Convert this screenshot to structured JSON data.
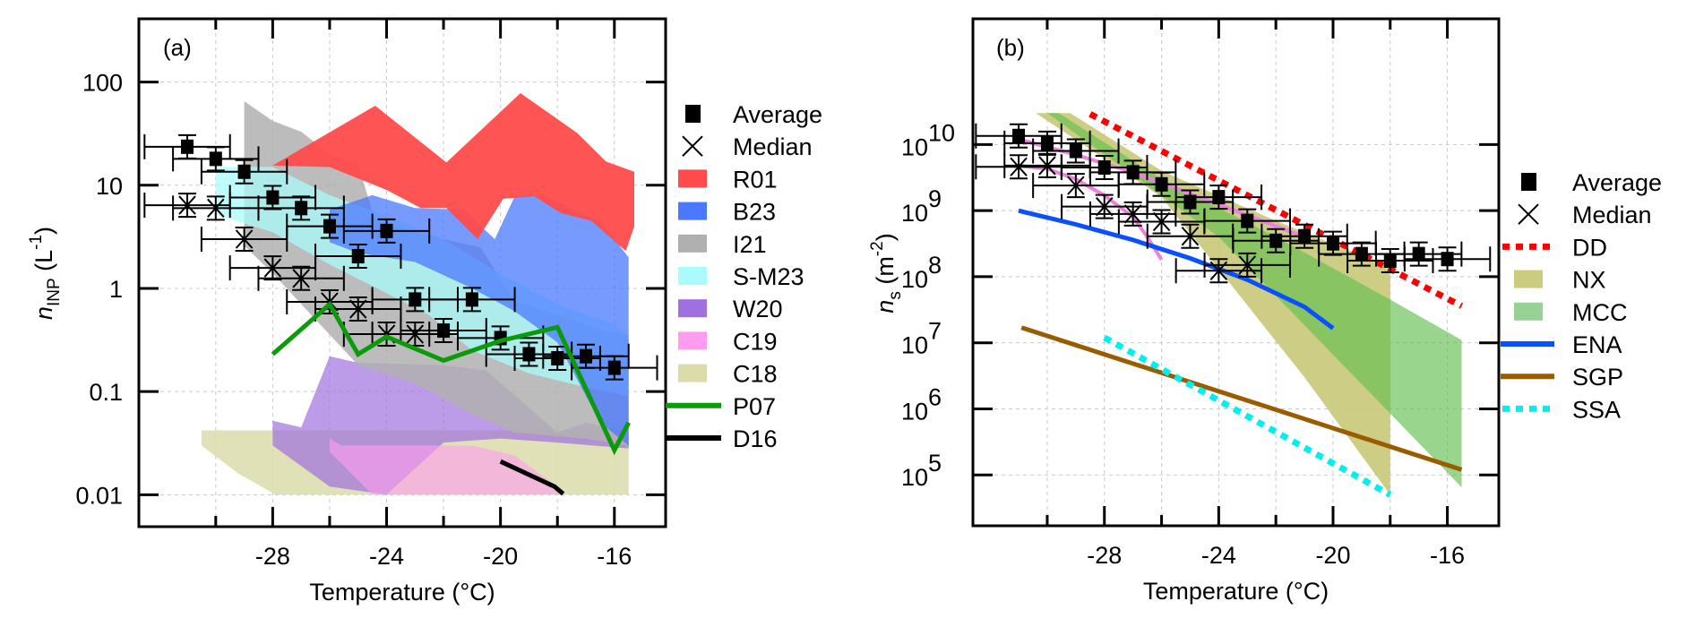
{
  "chart_data": [
    {
      "type": "scatter",
      "panel_label": "(a)",
      "xlabel": "Temperature (°C)",
      "ylabel": "n_INP (L^-1)",
      "ylabel_parts": {
        "main": "n",
        "sub": "INP",
        "unit_open": " (L",
        "unit_sup": "-1",
        "unit_close": ")"
      },
      "xscale": "linear",
      "yscale": "log",
      "xlim": [
        -32.7,
        -14.2
      ],
      "ylim": [
        0.0049,
        410
      ],
      "xticks_major": [
        -28,
        -24,
        -20,
        -16
      ],
      "xtick_labels": [
        "-28",
        "-24",
        "-20",
        "-16"
      ],
      "xticks_minor": [
        -30,
        -26,
        -22,
        -18
      ],
      "yticks": [
        0.01,
        0.1,
        1,
        10,
        100
      ],
      "ytick_labels": [
        "0.01",
        "0.1",
        "1",
        "10",
        "100"
      ],
      "grid": true,
      "legend_position": "outside-right",
      "legend": [
        {
          "label": "Average",
          "kind": "square",
          "color": "#000000"
        },
        {
          "label": "Median",
          "kind": "cross",
          "color": "#000000"
        },
        {
          "label": "R01",
          "kind": "patch",
          "color": "#ff4b4b"
        },
        {
          "label": "B23",
          "kind": "patch",
          "color": "#4a78ff"
        },
        {
          "label": "I21",
          "kind": "patch",
          "color": "#b0b0b0"
        },
        {
          "label": "S-M23",
          "kind": "patch",
          "color": "#aafcfc"
        },
        {
          "label": "W20",
          "kind": "patch",
          "color": "#a070e0"
        },
        {
          "label": "C19",
          "kind": "patch",
          "color": "#ff9cf0"
        },
        {
          "label": "C18",
          "kind": "patch",
          "color": "#dcdcaa"
        },
        {
          "label": "P07",
          "kind": "line",
          "color": "#0a9a0a"
        },
        {
          "label": "D16",
          "kind": "line",
          "color": "#000000"
        }
      ],
      "areas": [
        {
          "name": "C18",
          "color": "#dcdcaa",
          "opacity": 0.85,
          "points": [
            [
              -30.5,
              0.042
            ],
            [
              -15.5,
              0.042
            ],
            [
              -15.5,
              0.01
            ],
            [
              -27.9,
              0.01
            ],
            [
              -29.2,
              0.016
            ],
            [
              -30.5,
              0.03
            ]
          ]
        },
        {
          "name": "W20",
          "color": "#a070e0",
          "opacity": 0.7,
          "points": [
            [
              -28,
              0.052
            ],
            [
              -27,
              0.045
            ],
            [
              -26,
              0.22
            ],
            [
              -25,
              0.19
            ],
            [
              -22,
              0.18
            ],
            [
              -20.5,
              0.16
            ],
            [
              -19,
              0.07
            ],
            [
              -18,
              0.04
            ],
            [
              -17,
              0.05
            ],
            [
              -15.5,
              0.04
            ],
            [
              -15.5,
              0.028
            ],
            [
              -18,
              0.032
            ],
            [
              -20,
              0.035
            ],
            [
              -22,
              0.032
            ],
            [
              -24,
              0.01
            ],
            [
              -26,
              0.012
            ],
            [
              -28,
              0.03
            ]
          ]
        },
        {
          "name": "C19",
          "color": "#ff9cf0",
          "opacity": 0.6,
          "points": [
            [
              -26,
              0.035
            ],
            [
              -25.6,
              0.03
            ],
            [
              -21,
              0.03
            ],
            [
              -19.5,
              0.024
            ],
            [
              -18,
              0.012
            ],
            [
              -17.8,
              0.01
            ],
            [
              -24.5,
              0.01
            ],
            [
              -26,
              0.026
            ]
          ]
        },
        {
          "name": "I21",
          "color": "#b0b0b0",
          "opacity": 0.85,
          "points": [
            [
              -29,
              65
            ],
            [
              -28,
              42
            ],
            [
              -27,
              33
            ],
            [
              -26,
              20
            ],
            [
              -25,
              16
            ],
            [
              -24.4,
              4.5
            ],
            [
              -22,
              3.0
            ],
            [
              -20.7,
              2.5
            ],
            [
              -19.5,
              0.75
            ],
            [
              -18,
              0.55
            ],
            [
              -16.5,
              0.4
            ],
            [
              -15.5,
              0.35
            ],
            [
              -15.5,
              0.03
            ],
            [
              -17,
              0.035
            ],
            [
              -19.5,
              0.04
            ],
            [
              -21,
              0.06
            ],
            [
              -23,
              0.12
            ],
            [
              -25,
              0.18
            ],
            [
              -26.5,
              0.5
            ],
            [
              -28,
              1.4
            ],
            [
              -29,
              2.6
            ]
          ]
        },
        {
          "name": "S-M23",
          "color": "#aafcfc",
          "opacity": 0.75,
          "points": [
            [
              -30,
              15
            ],
            [
              -28,
              15
            ],
            [
              -26,
              8
            ],
            [
              -24,
              5
            ],
            [
              -22,
              3
            ],
            [
              -20,
              1.4
            ],
            [
              -18,
              0.7
            ],
            [
              -16,
              0.45
            ],
            [
              -15.5,
              0.35
            ],
            [
              -15.5,
              0.09
            ],
            [
              -17,
              0.11
            ],
            [
              -19,
              0.15
            ],
            [
              -21,
              0.25
            ],
            [
              -22.5,
              0.55
            ],
            [
              -24,
              0.9
            ],
            [
              -26,
              1.7
            ],
            [
              -28,
              3.5
            ],
            [
              -30,
              5.2
            ]
          ]
        },
        {
          "name": "B23",
          "color": "#4a78ff",
          "opacity": 0.75,
          "points": [
            [
              -26,
              5.8
            ],
            [
              -24.5,
              8
            ],
            [
              -23,
              6
            ],
            [
              -21.3,
              5.8
            ],
            [
              -20.2,
              3
            ],
            [
              -19.5,
              7.8
            ],
            [
              -18.5,
              8
            ],
            [
              -17.3,
              5.5
            ],
            [
              -16.5,
              4.5
            ],
            [
              -15.5,
              2
            ],
            [
              -15.5,
              0.03
            ],
            [
              -16.5,
              0.05
            ],
            [
              -18,
              0.3
            ],
            [
              -19.5,
              0.6
            ],
            [
              -21,
              1
            ],
            [
              -23,
              1.8
            ],
            [
              -25,
              2.2
            ],
            [
              -26,
              2.8
            ]
          ]
        },
        {
          "name": "R01",
          "color": "#ff4b4b",
          "opacity": 0.95,
          "points": [
            [
              -28,
              15.5
            ],
            [
              -24.4,
              59
            ],
            [
              -21.9,
              16.6
            ],
            [
              -19.3,
              78
            ],
            [
              -17.3,
              32
            ],
            [
              -16.3,
              17
            ],
            [
              -15.3,
              13.5
            ],
            [
              -15.3,
              4
            ],
            [
              -15.6,
              2.3
            ],
            [
              -16.8,
              4.5
            ],
            [
              -17.9,
              5.4
            ],
            [
              -18.8,
              7.8
            ],
            [
              -19.9,
              7.4
            ],
            [
              -20.8,
              3
            ],
            [
              -21.9,
              6
            ],
            [
              -22.8,
              6
            ],
            [
              -24,
              9
            ],
            [
              -26,
              15
            ],
            [
              -28,
              15.5
            ]
          ]
        }
      ],
      "lines": [
        {
          "name": "P07",
          "color": "#0a9a0a",
          "points": [
            [
              -28,
              0.23
            ],
            [
              -26,
              0.7
            ],
            [
              -25,
              0.23
            ],
            [
              -24,
              0.34
            ],
            [
              -22,
              0.2
            ],
            [
              -20,
              0.31
            ],
            [
              -18,
              0.42
            ],
            [
              -16,
              0.027
            ],
            [
              -15.5,
              0.05
            ]
          ]
        },
        {
          "name": "D16",
          "color": "#000000",
          "points": [
            [
              -20,
              0.021
            ],
            [
              -18.1,
              0.012
            ],
            [
              -17.8,
              0.0102
            ]
          ]
        }
      ],
      "average": {
        "x": [
          -31,
          -30,
          -29,
          -28,
          -27,
          -26,
          -25,
          -24,
          -23,
          -22,
          -21,
          -20,
          -19,
          -18,
          -17,
          -16
        ],
        "y": [
          23.6,
          18,
          13.5,
          7.6,
          6,
          4,
          2.05,
          3.6,
          0.78,
          0.39,
          0.78,
          0.33,
          0.23,
          0.21,
          0.22,
          0.17
        ]
      },
      "median": {
        "x": [
          -31,
          -30,
          -29,
          -28,
          -27,
          -26,
          -25,
          -24,
          -23
        ],
        "y": [
          6.4,
          6,
          3,
          1.58,
          1.25,
          0.74,
          0.63,
          0.36,
          0.36
        ]
      }
    },
    {
      "type": "scatter",
      "panel_label": "(b)",
      "xlabel": "Temperature (°C)",
      "ylabel": "n_s (m^-2)",
      "ylabel_parts": {
        "main": "n",
        "sub": "s",
        "unit_open": " (m",
        "unit_sup": "-2",
        "unit_close": ")"
      },
      "xscale": "linear",
      "yscale": "log",
      "xlim": [
        -32.6,
        -14.2
      ],
      "ylim": [
        17000,
        800000000000
      ],
      "xticks_major": [
        -28,
        -24,
        -20,
        -16
      ],
      "xtick_labels": [
        "-28",
        "-24",
        "-20",
        "-16"
      ],
      "xticks_minor": [
        -30,
        -26,
        -22,
        -18
      ],
      "yticks": [
        100000,
        1000000,
        10000000,
        100000000,
        1000000000,
        10000000000
      ],
      "ytick_labels": [
        {
          "base": "10",
          "exp": "5"
        },
        {
          "base": "10",
          "exp": "6"
        },
        {
          "base": "10",
          "exp": "7"
        },
        {
          "base": "10",
          "exp": "8"
        },
        {
          "base": "10",
          "exp": "9"
        },
        {
          "base": "10",
          "exp": "10"
        }
      ],
      "grid": true,
      "legend_position": "outside-right",
      "legend": [
        {
          "label": "Average",
          "kind": "square",
          "color": "#000000"
        },
        {
          "label": "Median",
          "kind": "cross",
          "color": "#000000"
        },
        {
          "label": "DD",
          "kind": "dotted",
          "color": "#ff0000"
        },
        {
          "label": "NX",
          "kind": "patch",
          "color": "#cccc80"
        },
        {
          "label": "MCC",
          "kind": "patch",
          "color": "#96d296"
        },
        {
          "label": "ENA",
          "kind": "line",
          "color": "#0a50ff"
        },
        {
          "label": "SGP",
          "kind": "line",
          "color": "#9a5c00"
        },
        {
          "label": "SSA",
          "kind": "dotted",
          "color": "#00f0f0"
        }
      ],
      "areas": [
        {
          "name": "NX",
          "color": "#c8c878",
          "opacity": 0.9,
          "points": [
            [
              -30.4,
              30000000000
            ],
            [
              -29.2,
              30000000000
            ],
            [
              -26,
              4000000000
            ],
            [
              -22,
              700000000
            ],
            [
              -18,
              140000000
            ],
            [
              -18,
              50000
            ],
            [
              -21,
              3000000
            ],
            [
              -24,
              130000000
            ],
            [
              -26,
              1600000000
            ],
            [
              -30.4,
              30000000000
            ]
          ]
        },
        {
          "name": "MCC",
          "color": "#64be50",
          "opacity": 0.65,
          "points": [
            [
              -30,
              30000000000
            ],
            [
              -29.6,
              30000000000
            ],
            [
              -26,
              3000000000
            ],
            [
              -22,
              400000000
            ],
            [
              -18,
              45000000
            ],
            [
              -15.5,
              11000000
            ],
            [
              -15.5,
              65000
            ],
            [
              -20.4,
              10000000
            ],
            [
              -24,
              400000000
            ],
            [
              -30,
              30000000000
            ]
          ]
        }
      ],
      "lines": [
        {
          "name": "C19-upper",
          "color": "#f080e0",
          "points": [
            [
              -31,
              12000000000
            ],
            [
              -29,
              7000000000
            ],
            [
              -27,
              3800000000
            ],
            [
              -25,
              1800000000
            ],
            [
              -23,
              850000000
            ],
            [
              -21,
              400000000
            ]
          ]
        },
        {
          "name": "C19-lower",
          "color": "#f080e0",
          "points": [
            [
              -31,
              4800000000
            ],
            [
              -30,
              4300000000
            ],
            [
              -29,
              3000000000
            ],
            [
              -28,
              1700000000
            ],
            [
              -27,
              800000000
            ],
            [
              -26.5,
              400000000
            ],
            [
              -26,
              180000000
            ]
          ]
        },
        {
          "name": "ENA",
          "color": "#0a50ff",
          "points": [
            [
              -31,
              1000000000
            ],
            [
              -29,
              620000000
            ],
            [
              -27,
              360000000
            ],
            [
              -25,
              190000000
            ],
            [
              -23,
              90000000
            ],
            [
              -21,
              35000000
            ],
            [
              -20,
              16600000
            ]
          ]
        },
        {
          "name": "SGP",
          "color": "#9a5c00",
          "points": [
            [
              -30.9,
              17000000
            ],
            [
              -15.5,
              120000
            ]
          ]
        },
        {
          "name": "SSA",
          "color": "#00f0f0",
          "dotted": true,
          "points": [
            [
              -28,
              12000000
            ],
            [
              -18,
              50000
            ]
          ]
        },
        {
          "name": "DD",
          "color": "#ff0000",
          "dotted": true,
          "points": [
            [
              -28.5,
              29000000000
            ],
            [
              -15.5,
              36000000
            ]
          ]
        }
      ],
      "average": {
        "x": [
          -31,
          -30,
          -29,
          -28,
          -27,
          -26,
          -25,
          -24,
          -23,
          -22,
          -21,
          -20,
          -19,
          -18,
          -17,
          -16
        ],
        "y": [
          13500000000,
          10500000000,
          8000000000,
          4500000000,
          3800000000,
          2500000000,
          1350000000,
          1600000000,
          700000000,
          350000000,
          410000000,
          320000000,
          220000000,
          175000000,
          220000000,
          185000000
        ]
      },
      "median": {
        "x": [
          -31,
          -30,
          -29,
          -28,
          -27,
          -26,
          -25,
          -24,
          -23
        ],
        "y": [
          4600000000,
          4800000000,
          2400000000,
          1150000000,
          890000000,
          680000000,
          410000000,
          123000000,
          150000000
        ]
      }
    }
  ]
}
